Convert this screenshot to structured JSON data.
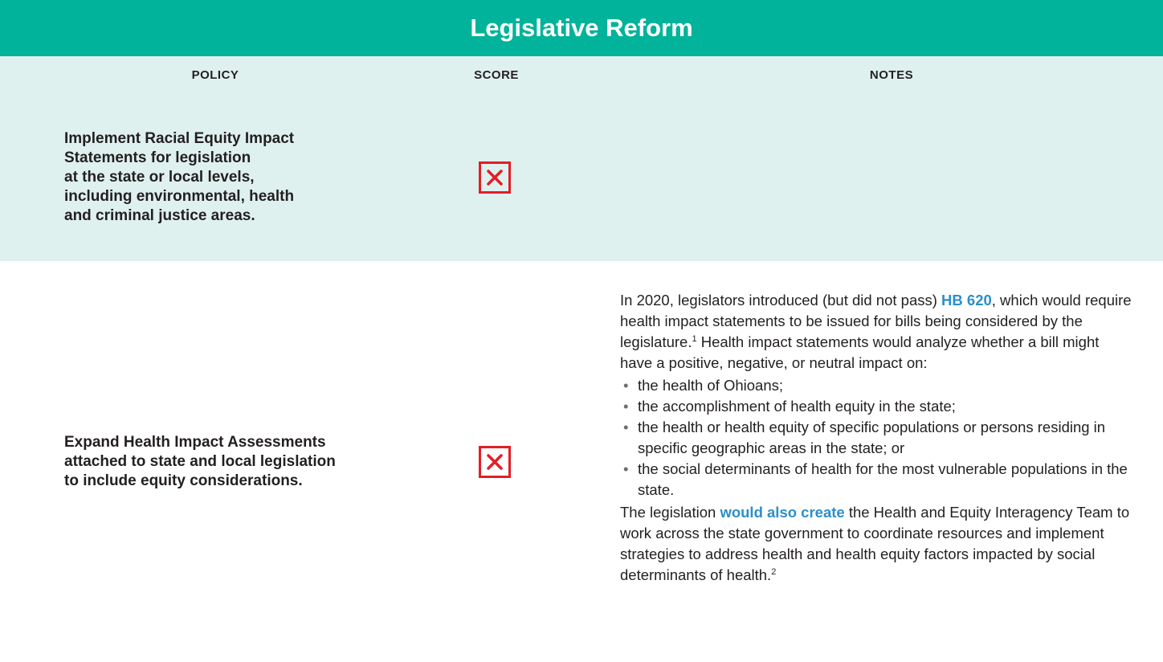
{
  "title": "Legislative Reform",
  "columns": [
    "POLICY",
    "SCORE",
    "NOTES"
  ],
  "rows": [
    {
      "policy": [
        "Implement Racial Equity Impact",
        "Statements for legislation",
        "at the state or local levels,",
        "including environmental, health",
        "and criminal justice areas."
      ]
    },
    {
      "policy": [
        "Expand Health Impact Assessments",
        "attached to state and local legislation",
        "to include equity considerations."
      ],
      "notes": {
        "intro": {
          "text_1": "In 2020, legislators introduced (but did not pass) ",
          "link": "HB 620",
          "text_2": ", which would require health impact statements to be issued for bills being considered by the legislature.",
          "footnote": "1",
          "text_3": " Health impact statements would analyze whether a bill might have a positive, negative, or neutral impact on:"
        },
        "bullets": [
          "the health of Ohioans;",
          "the accomplishment of health equity in the state;",
          "the health or health equity of specific populations or persons residing in specific geographic areas in the state; or",
          "the social determinants of health for the most vulnerable populations in the state."
        ],
        "closing": {
          "text_1": "The legislation ",
          "link": "would also create",
          "text_2": " the Health and Equity Interagency Team to work across the state government to coordinate resources and implement strategies to address health and health equity factors impacted by social determinants of health.",
          "footnote": "2"
        }
      }
    }
  ]
}
